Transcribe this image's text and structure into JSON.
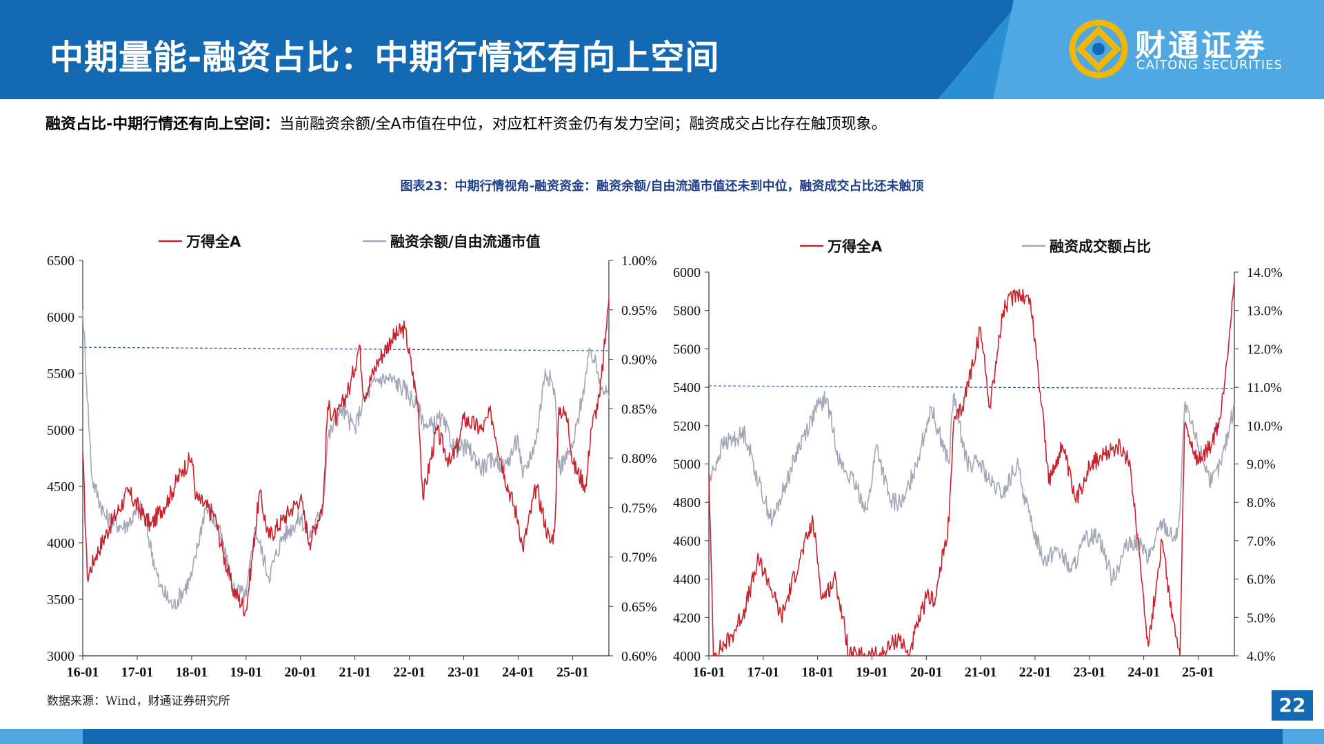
{
  "page": {
    "title": "中期量能-融资占比：中期行情还有向上空间",
    "logo_cn": "财通证券",
    "logo_en": "CAITONG SECURITIES",
    "subtitle_bold": "融资占比-中期行情还有向上空间：",
    "subtitle_text": "当前融资余额/全A市值在中位，对应杠杆资金仍有发力空间；融资成交占比存在触顶现象。",
    "figure_title": "图表23：中期行情视角-融资资金：融资余额/自由流通市值还未到中位，融资成交占比还未触顶",
    "source": "数据来源：Wind，财通证券研究所",
    "page_number": "22",
    "colors": {
      "header_blue": "#1469b3",
      "accent_light": "#4fa8e2",
      "series_red": "#c8232c",
      "series_gray": "#a3a8b8",
      "median_line": "#3a5a9a",
      "logo_gold": "#f2b705"
    }
  },
  "chart_data": [
    {
      "type": "line",
      "title": "",
      "x_ticks": [
        "16-01",
        "17-01",
        "18-01",
        "19-01",
        "20-01",
        "21-01",
        "22-01",
        "23-01",
        "24-01",
        "25-01"
      ],
      "x_range": [
        "2016-01",
        "2025-09"
      ],
      "y_left": {
        "ticks": [
          "3000",
          "3500",
          "4000",
          "4500",
          "5000",
          "5500",
          "6000",
          "6500"
        ],
        "range": [
          3000,
          6500
        ]
      },
      "y_right": {
        "ticks": [
          "0.60%",
          "0.65%",
          "0.70%",
          "0.75%",
          "0.80%",
          "0.85%",
          "0.90%",
          "0.95%",
          "1.00%"
        ],
        "range": [
          0.6,
          1.0
        ]
      },
      "median_reference": {
        "axis": "right",
        "value": 0.91
      },
      "grid": false,
      "legend_position": "top",
      "series": [
        {
          "name": "万得全A",
          "axis": "left",
          "color": "#c8232c",
          "x": [
            "2016-01",
            "2016-02",
            "2016-04",
            "2016-07",
            "2016-11",
            "2017-04",
            "2017-08",
            "2017-11",
            "2018-01",
            "2018-02",
            "2018-06",
            "2018-08",
            "2018-10",
            "2019-01",
            "2019-04",
            "2019-06",
            "2019-09",
            "2020-01",
            "2020-03",
            "2020-06",
            "2020-07",
            "2020-09",
            "2020-12",
            "2021-02",
            "2021-03",
            "2021-06",
            "2021-09",
            "2021-12",
            "2022-03",
            "2022-04",
            "2022-07",
            "2022-10",
            "2022-12",
            "2023-01",
            "2023-05",
            "2023-07",
            "2023-10",
            "2024-01",
            "2024-02",
            "2024-05",
            "2024-08",
            "2024-09",
            "2024-10",
            "2024-12",
            "2025-01",
            "2025-04",
            "2025-05",
            "2025-07",
            "2025-09"
          ],
          "values": [
            4800,
            3700,
            3900,
            4150,
            4450,
            4150,
            4400,
            4650,
            4750,
            4400,
            4250,
            3900,
            3600,
            3400,
            4450,
            4050,
            4200,
            4400,
            4000,
            4350,
            5200,
            5100,
            5400,
            5750,
            5300,
            5600,
            5800,
            5900,
            5200,
            4400,
            5000,
            4700,
            4900,
            5100,
            5000,
            5150,
            4600,
            4200,
            3950,
            4500,
            4000,
            4100,
            5200,
            5100,
            4700,
            4500,
            5000,
            5300,
            6150
          ]
        },
        {
          "name": "融资余额/自由流通市值",
          "axis": "right",
          "color": "#a3a8b8",
          "x": [
            "2016-01",
            "2016-03",
            "2016-06",
            "2016-10",
            "2017-02",
            "2017-06",
            "2017-09",
            "2018-01",
            "2018-04",
            "2018-07",
            "2018-10",
            "2019-01",
            "2019-03",
            "2019-06",
            "2019-09",
            "2020-01",
            "2020-03",
            "2020-06",
            "2020-07",
            "2020-10",
            "2021-01",
            "2021-03",
            "2021-06",
            "2021-09",
            "2021-12",
            "2022-03",
            "2022-05",
            "2022-08",
            "2022-11",
            "2023-02",
            "2023-05",
            "2023-08",
            "2023-10",
            "2024-01",
            "2024-02",
            "2024-05",
            "2024-07",
            "2024-09",
            "2024-10",
            "2025-01",
            "2025-03",
            "2025-05",
            "2025-07",
            "2025-09"
          ],
          "values": [
            0.95,
            0.78,
            0.74,
            0.73,
            0.75,
            0.67,
            0.65,
            0.68,
            0.75,
            0.73,
            0.67,
            0.66,
            0.73,
            0.68,
            0.72,
            0.74,
            0.72,
            0.75,
            0.82,
            0.85,
            0.83,
            0.86,
            0.88,
            0.88,
            0.87,
            0.85,
            0.83,
            0.84,
            0.81,
            0.81,
            0.79,
            0.8,
            0.79,
            0.82,
            0.78,
            0.82,
            0.89,
            0.87,
            0.79,
            0.81,
            0.86,
            0.91,
            0.88,
            0.86
          ]
        }
      ]
    },
    {
      "type": "line",
      "title": "",
      "x_ticks": [
        "16-01",
        "17-01",
        "18-01",
        "19-01",
        "20-01",
        "21-01",
        "22-01",
        "23-01",
        "24-01",
        "25-01"
      ],
      "x_range": [
        "2016-01",
        "2025-09"
      ],
      "y_left": {
        "ticks": [
          "4000",
          "4200",
          "4400",
          "4600",
          "4800",
          "5000",
          "5200",
          "5400",
          "5600",
          "5800",
          "6000"
        ],
        "range": [
          4000,
          6000
        ]
      },
      "y_right": {
        "ticks": [
          "4.0%",
          "5.0%",
          "6.0%",
          "7.0%",
          "8.0%",
          "9.0%",
          "10.0%",
          "11.0%",
          "12.0%",
          "13.0%",
          "14.0%"
        ],
        "range": [
          4.0,
          14.0
        ]
      },
      "median_reference": {
        "axis": "right",
        "value": 11.0
      },
      "grid": false,
      "legend_position": "top",
      "series": [
        {
          "name": "万得全A",
          "axis": "left",
          "color": "#c8232c",
          "x": [
            "2016-01",
            "2016-02",
            "2016-06",
            "2016-09",
            "2016-12",
            "2017-02",
            "2017-05",
            "2017-09",
            "2017-12",
            "2018-02",
            "2018-05",
            "2018-08",
            "2018-10",
            "2019-03",
            "2019-07",
            "2019-09",
            "2020-01",
            "2020-03",
            "2020-06",
            "2020-07",
            "2020-09",
            "2021-01",
            "2021-03",
            "2021-06",
            "2021-09",
            "2021-12",
            "2022-03",
            "2022-04",
            "2022-07",
            "2022-10",
            "2023-01",
            "2023-05",
            "2023-07",
            "2023-10",
            "2024-01",
            "2024-02",
            "2024-05",
            "2024-08",
            "2024-09",
            "2024-10",
            "2025-01",
            "2025-04",
            "2025-06",
            "2025-08",
            "2025-09"
          ],
          "values": [
            4950,
            4000,
            4100,
            4250,
            4500,
            4400,
            4200,
            4500,
            4700,
            4300,
            4400,
            4000,
            4000,
            4000,
            4100,
            4000,
            4300,
            4300,
            4700,
            5200,
            5300,
            5700,
            5300,
            5800,
            5900,
            5850,
            5200,
            4900,
            5100,
            4800,
            5000,
            5050,
            5100,
            5000,
            4300,
            4050,
            4600,
            4100,
            4000,
            5200,
            5000,
            5100,
            5250,
            5700,
            5950
          ]
        },
        {
          "name": "融资成交额占比",
          "axis": "right",
          "color": "#a3a8b8",
          "x": [
            "2016-01",
            "2016-04",
            "2016-09",
            "2016-12",
            "2017-03",
            "2017-06",
            "2017-09",
            "2018-01",
            "2018-03",
            "2018-06",
            "2018-09",
            "2018-12",
            "2019-02",
            "2019-05",
            "2019-08",
            "2019-12",
            "2020-02",
            "2020-06",
            "2020-07",
            "2020-10",
            "2021-01",
            "2021-03",
            "2021-06",
            "2021-09",
            "2021-12",
            "2022-03",
            "2022-06",
            "2022-09",
            "2022-12",
            "2023-03",
            "2023-06",
            "2023-09",
            "2023-12",
            "2024-02",
            "2024-05",
            "2024-08",
            "2024-09",
            "2024-10",
            "2025-01",
            "2025-04",
            "2025-06",
            "2025-08",
            "2025-09"
          ],
          "values": [
            8.5,
            9.5,
            9.8,
            8.5,
            7.5,
            8.5,
            9.5,
            10.5,
            10.7,
            9.0,
            8.5,
            7.8,
            9.5,
            8.0,
            8.0,
            9.5,
            10.5,
            9.0,
            10.8,
            9.0,
            9.0,
            8.5,
            8.2,
            9.0,
            7.5,
            6.5,
            6.8,
            6.2,
            7.0,
            7.2,
            6.0,
            6.8,
            7.0,
            6.5,
            7.5,
            7.0,
            7.8,
            10.5,
            9.5,
            8.5,
            9.0,
            10.0,
            10.5
          ]
        }
      ]
    }
  ]
}
